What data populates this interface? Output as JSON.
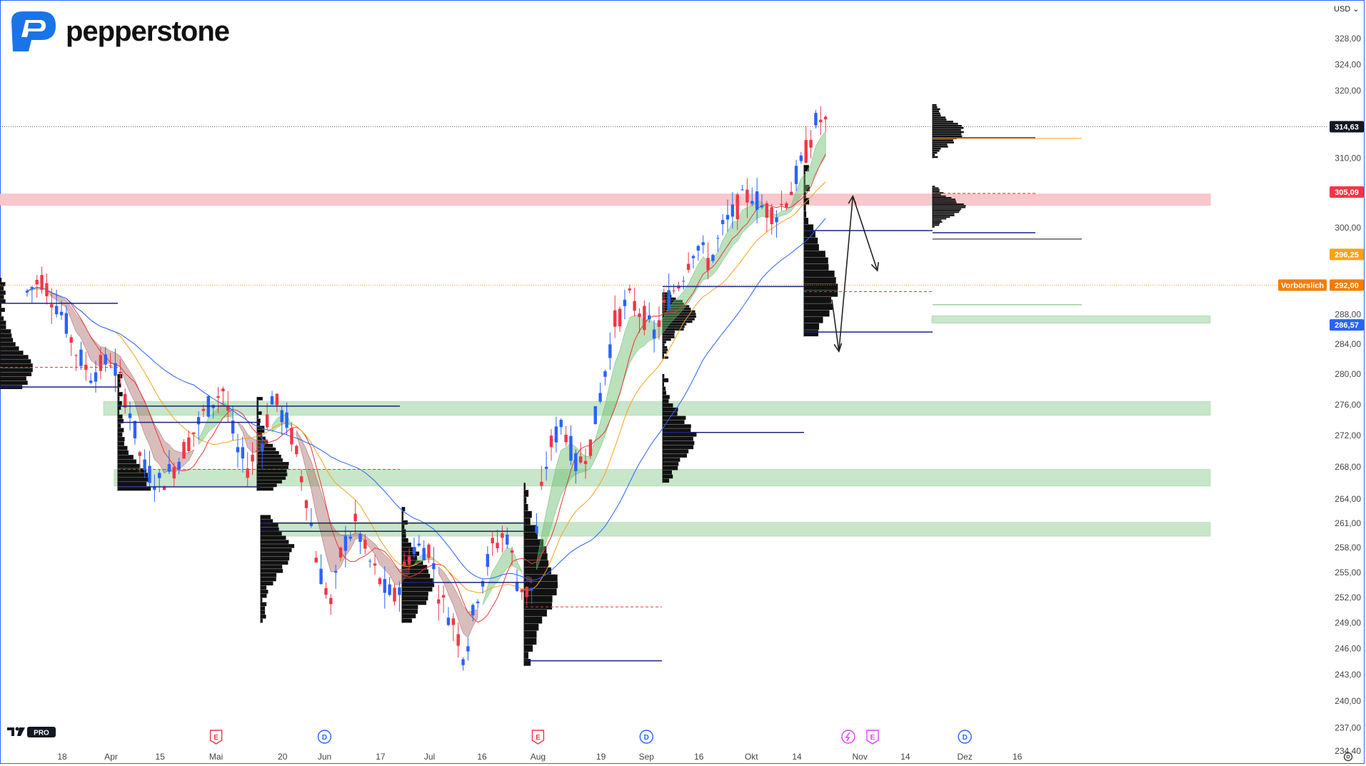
{
  "brand": {
    "name": "pepperstone",
    "platform_badge": "PRO"
  },
  "currency_label": "USD",
  "price_tags": {
    "last": {
      "value": "314,63",
      "color": "#131722"
    },
    "resistance": {
      "value": "305,09",
      "color": "#f23645"
    },
    "ma_orange": {
      "value": "296,25",
      "color": "#f7a21b"
    },
    "preliminary": {
      "label": "Vorbörslich",
      "value": "292,00",
      "color": "#f57c00"
    },
    "ma_blue": {
      "value": "286,57",
      "color": "#2962ff"
    }
  },
  "event_markers": [
    {
      "type": "E",
      "at": "Mai",
      "color": "#f23645"
    },
    {
      "type": "D",
      "at": "Jun",
      "color": "#2962ff"
    },
    {
      "type": "E",
      "at": "Aug",
      "color": "#f23645"
    },
    {
      "type": "D",
      "at": "Sep",
      "color": "#2962ff"
    },
    {
      "type": "split",
      "at": "Okt 14",
      "color": "#e040fb"
    },
    {
      "type": "E",
      "at": "Okt 14",
      "color": "#e040fb"
    },
    {
      "type": "D",
      "at": "Dez",
      "color": "#2962ff"
    }
  ],
  "chart_data": {
    "type": "candlestick",
    "y_scale": "log",
    "ylim": [
      233,
      334
    ],
    "y_tick_labels": [
      "328,00",
      "324,00",
      "320,00",
      "310,00",
      "300,00",
      "288,00",
      "284,00",
      "280,00",
      "276,00",
      "272,00",
      "268,00",
      "264,00",
      "261,00",
      "258,00",
      "255,00",
      "252,00",
      "249,00",
      "246,00",
      "243,00",
      "240,00",
      "237,00",
      "234,40"
    ],
    "x_tick_labels": [
      "18",
      "Apr",
      "15",
      "Mai",
      "20",
      "Jun",
      "17",
      "Jul",
      "16",
      "Aug",
      "19",
      "Sep",
      "16",
      "Okt",
      "14",
      "Nov",
      "14",
      "Dez",
      "16"
    ],
    "zones": [
      {
        "kind": "resistance",
        "from": 303.2,
        "to": 304.8,
        "color": "#f8c8cc"
      },
      {
        "kind": "support",
        "from": 286.8,
        "to": 287.8,
        "color": "#c8e6c9"
      },
      {
        "kind": "support",
        "from": 274.6,
        "to": 276.4,
        "color": "#c8e6c9"
      },
      {
        "kind": "support",
        "from": 265.6,
        "to": 267.7,
        "color": "#c8e6c9"
      },
      {
        "kind": "support",
        "from": 259.4,
        "to": 261.1,
        "color": "#c8e6c9"
      }
    ],
    "projection_path": [
      {
        "date": "Okt 24",
        "price": 290.0
      },
      {
        "date": "Okt 26",
        "price": 283.0
      },
      {
        "date": "Okt 30",
        "price": 304.5
      },
      {
        "date": "Nov 6",
        "price": 294.0
      }
    ],
    "moving_averages": [
      {
        "name": "MA red",
        "color": "#e53935",
        "last": 304.4
      },
      {
        "name": "MA orange",
        "color": "#f7a21b",
        "last": 296.25
      },
      {
        "name": "MA blue",
        "color": "#2962ff",
        "last": 286.57
      }
    ],
    "last_price": 314.63,
    "preliminary_price": 292.0
  }
}
